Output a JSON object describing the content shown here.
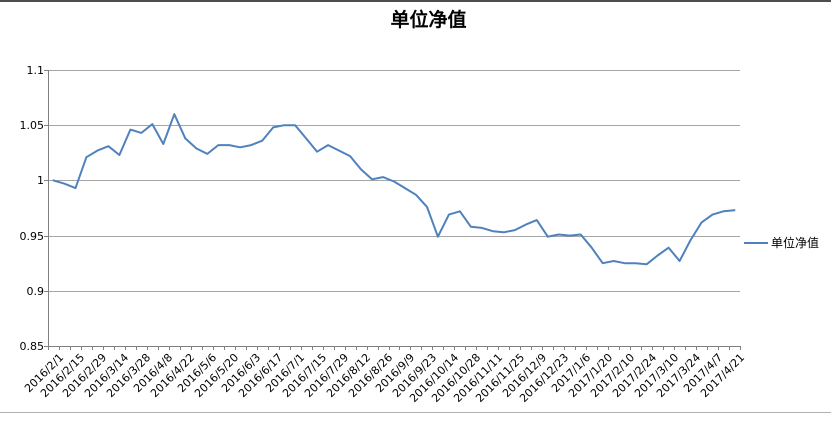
{
  "window": {
    "top_border_color": "#4d4d4d",
    "bottom_border_color": "#b0b0b0",
    "background": "#ffffff"
  },
  "chart_data": {
    "type": "line",
    "title": "单位净值",
    "legend": {
      "position": "right",
      "entries": [
        "单位净值"
      ]
    },
    "grid": true,
    "ylim": [
      0.85,
      1.1
    ],
    "ytick_step": 0.05,
    "y_tick_labels": [
      "1.1",
      "1.05",
      "1",
      "0.95",
      "0.9",
      "0.85"
    ],
    "x_label_interval": 2,
    "x_tick_labels": [
      "2016/2/1",
      "2016/2/15",
      "2016/2/29",
      "2016/3/14",
      "2016/3/28",
      "2016/4/8",
      "2016/4/22",
      "2016/5/6",
      "2016/5/20",
      "2016/6/3",
      "2016/6/17",
      "2016/7/1",
      "2016/7/15",
      "2016/7/29",
      "2016/8/12",
      "2016/8/26",
      "2016/9/9",
      "2016/9/23",
      "2016/10/14",
      "2016/10/28",
      "2016/11/11",
      "2016/11/25",
      "2016/12/9",
      "2016/12/23",
      "2017/1/6",
      "2017/1/20",
      "2017/2/10",
      "2017/2/24",
      "2017/3/10",
      "2017/3/24",
      "2017/4/7",
      "2017/4/21"
    ],
    "series": [
      {
        "name": "单位净值",
        "color": "#4F81BD",
        "values": [
          1.0,
          0.997,
          0.993,
          1.021,
          1.027,
          1.031,
          1.023,
          1.046,
          1.043,
          1.051,
          1.033,
          1.06,
          1.038,
          1.029,
          1.024,
          1.032,
          1.032,
          1.03,
          1.032,
          1.036,
          1.048,
          1.05,
          1.05,
          1.038,
          1.026,
          1.032,
          1.027,
          1.022,
          1.01,
          1.001,
          1.003,
          0.999,
          0.993,
          0.987,
          0.976,
          0.949,
          0.969,
          0.972,
          0.958,
          0.957,
          0.954,
          0.953,
          0.955,
          0.96,
          0.964,
          0.949,
          0.951,
          0.95,
          0.951,
          0.939,
          0.925,
          0.927,
          0.925,
          0.925,
          0.924,
          0.932,
          0.939,
          0.927,
          0.946,
          0.962,
          0.969,
          0.972,
          0.973
        ]
      }
    ],
    "gridline_color": "#a6a6a6",
    "axis_color": "#808080",
    "text_color": "#000000"
  }
}
